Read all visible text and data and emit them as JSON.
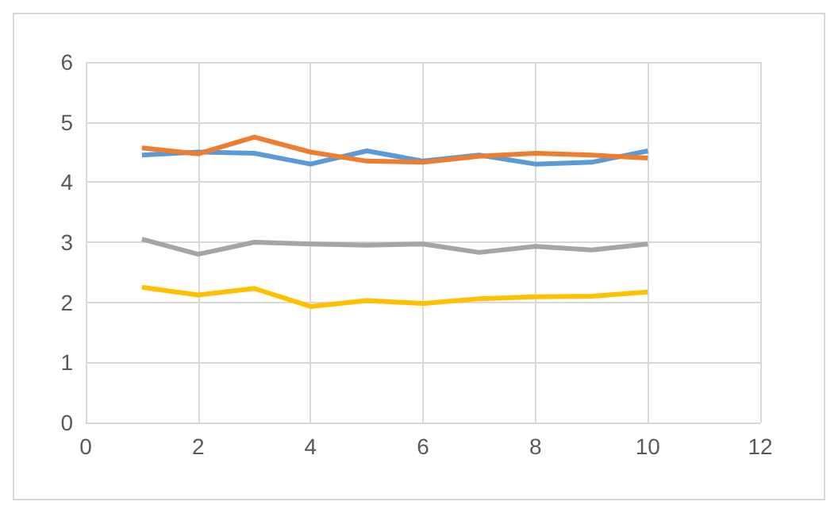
{
  "chart_data": {
    "type": "line",
    "x": [
      1,
      2,
      3,
      4,
      5,
      6,
      7,
      8,
      9,
      10
    ],
    "series": [
      {
        "color": "#5b9bd5",
        "values": [
          4.45,
          4.5,
          4.48,
          4.3,
          4.52,
          4.35,
          4.45,
          4.3,
          4.33,
          4.52
        ]
      },
      {
        "color": "#ed7d31",
        "values": [
          4.57,
          4.47,
          4.75,
          4.5,
          4.35,
          4.33,
          4.43,
          4.48,
          4.45,
          4.4
        ]
      },
      {
        "color": "#a5a5a5",
        "values": [
          3.05,
          2.8,
          3.0,
          2.97,
          2.95,
          2.97,
          2.83,
          2.93,
          2.87,
          2.97
        ]
      },
      {
        "color": "#ffc000",
        "values": [
          2.25,
          2.12,
          2.23,
          1.93,
          2.03,
          1.98,
          2.06,
          2.09,
          2.1,
          2.17
        ]
      }
    ],
    "xlim": [
      0,
      12
    ],
    "xticks": [
      0,
      2,
      4,
      6,
      8,
      10,
      12
    ],
    "ylim": [
      0,
      6
    ],
    "yticks": [
      0,
      1,
      2,
      3,
      4,
      5,
      6
    ],
    "grid": true,
    "marker": "none",
    "line_style": "solid"
  }
}
